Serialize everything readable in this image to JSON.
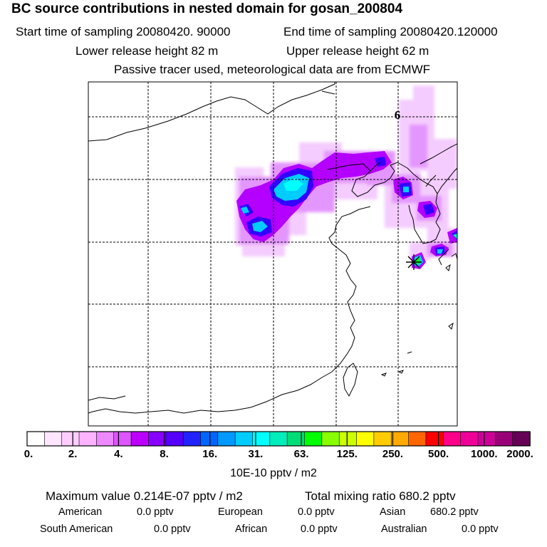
{
  "header": {
    "title": "BC  source contributions in nested domain for gosan_200804",
    "start_label": "Start time of sampling 20080420. 90000",
    "end_label": "End time of sampling 20080420.120000",
    "lower_release": "Lower release height   82 m",
    "upper_release": "Upper release height   62 m",
    "tracer_note": "Passive tracer used, meteorological data are from ECMWF"
  },
  "map": {
    "grid_label": "6",
    "receptor_marker": "receptor-star"
  },
  "colorbar": {
    "tick_labels": [
      "0.",
      "2.",
      "4.",
      "8.",
      "16.",
      "31.",
      "63.",
      "125.",
      "250.",
      "500.",
      "1000.",
      "2000."
    ],
    "units": "10E-10 pptv / m2",
    "colors": [
      "#ffffff",
      "#ffe6ff",
      "#ffccff",
      "#ffb3ff",
      "#ee88ff",
      "#dd55ff",
      "#bb00ff",
      "#8800ff",
      "#5500ff",
      "#2222ff",
      "#0066ff",
      "#0099ff",
      "#00ccff",
      "#00ffff",
      "#00eebb",
      "#00dd77",
      "#00ff00",
      "#88ff00",
      "#ccff00",
      "#ffff00",
      "#ffcc00",
      "#ffaa00",
      "#ff6600",
      "#ff0000",
      "#ff0088",
      "#ee0099",
      "#cc0099",
      "#990077",
      "#660055"
    ]
  },
  "summary": {
    "max_label": "Maximum value  0.214E-07 pptv / m2",
    "total_label": "Total mixing ratio      680.2 pptv",
    "american_label": "American",
    "american_value": "0.0 pptv",
    "european_label": "European",
    "european_value": "0.0 pptv",
    "asian_label": "Asian",
    "asian_value": "680.2 pptv",
    "south_american_label": "South American",
    "south_american_value": "0.0 pptv",
    "african_label": "African",
    "african_value": "0.0 pptv",
    "australian_label": "Australian",
    "australian_value": "0.0 pptv"
  }
}
